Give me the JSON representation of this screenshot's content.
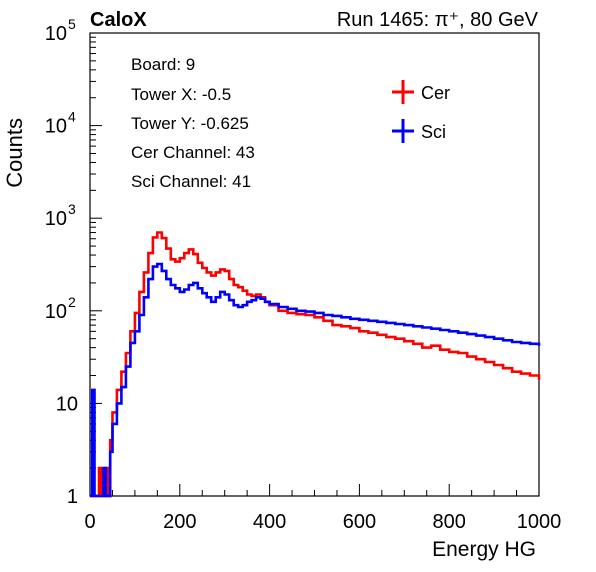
{
  "chart_data": {
    "type": "histogram",
    "title_left": "CaloX",
    "title_right": "Run 1465:   π⁺, 80 GeV",
    "xlabel": "Energy HG",
    "ylabel": "Counts",
    "xlim": [
      0,
      1000
    ],
    "ylim": [
      1,
      100000
    ],
    "ylog": true,
    "xticks": [
      0,
      200,
      400,
      600,
      800,
      1000
    ],
    "xtick_labels": [
      "0",
      "200",
      "400",
      "600",
      "800",
      "1000"
    ],
    "ytick_labels": [
      {
        "value": 1,
        "base": "1",
        "exp": ""
      },
      {
        "value": 10,
        "base": "10",
        "exp": ""
      },
      {
        "value": 100,
        "base": "10",
        "exp": "2"
      },
      {
        "value": 1000,
        "base": "10",
        "exp": "3"
      },
      {
        "value": 10000,
        "base": "10",
        "exp": "4"
      },
      {
        "value": 100000,
        "base": "10",
        "exp": "5"
      }
    ],
    "info_lines": [
      "Board: 9",
      "Tower X: -0.5",
      "Tower Y: -0.625",
      "Cer Channel: 43",
      "Sci Channel: 41"
    ],
    "legend_position": "top-right",
    "series": [
      {
        "name": "Cer",
        "color": "#ff0000",
        "points": [
          [
            0,
            1
          ],
          [
            5,
            1
          ],
          [
            10,
            1
          ],
          [
            15,
            1
          ],
          [
            20,
            2
          ],
          [
            25,
            1
          ],
          [
            30,
            1
          ],
          [
            35,
            2
          ],
          [
            40,
            1
          ],
          [
            45,
            4
          ],
          [
            50,
            8
          ],
          [
            60,
            14
          ],
          [
            70,
            22
          ],
          [
            80,
            35
          ],
          [
            90,
            60
          ],
          [
            100,
            95
          ],
          [
            110,
            160
          ],
          [
            120,
            260
          ],
          [
            130,
            420
          ],
          [
            140,
            620
          ],
          [
            150,
            700
          ],
          [
            160,
            610
          ],
          [
            170,
            470
          ],
          [
            180,
            360
          ],
          [
            190,
            340
          ],
          [
            200,
            370
          ],
          [
            210,
            420
          ],
          [
            220,
            460
          ],
          [
            230,
            410
          ],
          [
            240,
            330
          ],
          [
            250,
            290
          ],
          [
            260,
            260
          ],
          [
            270,
            240
          ],
          [
            280,
            260
          ],
          [
            290,
            280
          ],
          [
            300,
            270
          ],
          [
            310,
            220
          ],
          [
            320,
            190
          ],
          [
            330,
            180
          ],
          [
            340,
            165
          ],
          [
            350,
            150
          ],
          [
            360,
            145
          ],
          [
            370,
            150
          ],
          [
            380,
            140
          ],
          [
            390,
            125
          ],
          [
            400,
            115
          ],
          [
            420,
            100
          ],
          [
            440,
            95
          ],
          [
            460,
            92
          ],
          [
            480,
            90
          ],
          [
            500,
            85
          ],
          [
            520,
            78
          ],
          [
            540,
            70
          ],
          [
            560,
            68
          ],
          [
            580,
            65
          ],
          [
            600,
            60
          ],
          [
            620,
            58
          ],
          [
            640,
            55
          ],
          [
            660,
            52
          ],
          [
            680,
            50
          ],
          [
            700,
            47
          ],
          [
            720,
            44
          ],
          [
            740,
            40
          ],
          [
            760,
            42
          ],
          [
            780,
            38
          ],
          [
            800,
            36
          ],
          [
            820,
            35
          ],
          [
            840,
            32
          ],
          [
            860,
            30
          ],
          [
            880,
            28
          ],
          [
            900,
            26
          ],
          [
            920,
            24
          ],
          [
            940,
            22
          ],
          [
            960,
            21
          ],
          [
            980,
            20
          ],
          [
            1000,
            18
          ]
        ]
      },
      {
        "name": "Sci",
        "color": "#0000ff",
        "points": [
          [
            0,
            1
          ],
          [
            5,
            14
          ],
          [
            10,
            1
          ],
          [
            15,
            1
          ],
          [
            20,
            1
          ],
          [
            25,
            1
          ],
          [
            30,
            2
          ],
          [
            35,
            1
          ],
          [
            40,
            1
          ],
          [
            45,
            3
          ],
          [
            50,
            6
          ],
          [
            60,
            10
          ],
          [
            70,
            15
          ],
          [
            80,
            25
          ],
          [
            90,
            45
          ],
          [
            100,
            60
          ],
          [
            110,
            90
          ],
          [
            120,
            140
          ],
          [
            130,
            220
          ],
          [
            140,
            300
          ],
          [
            150,
            320
          ],
          [
            160,
            270
          ],
          [
            170,
            220
          ],
          [
            180,
            190
          ],
          [
            190,
            175
          ],
          [
            200,
            160
          ],
          [
            210,
            170
          ],
          [
            220,
            190
          ],
          [
            230,
            200
          ],
          [
            240,
            175
          ],
          [
            250,
            155
          ],
          [
            260,
            140
          ],
          [
            270,
            125
          ],
          [
            280,
            140
          ],
          [
            290,
            160
          ],
          [
            300,
            150
          ],
          [
            310,
            130
          ],
          [
            320,
            115
          ],
          [
            330,
            110
          ],
          [
            340,
            115
          ],
          [
            350,
            125
          ],
          [
            360,
            130
          ],
          [
            370,
            140
          ],
          [
            380,
            135
          ],
          [
            390,
            125
          ],
          [
            400,
            118
          ],
          [
            420,
            110
          ],
          [
            440,
            105
          ],
          [
            460,
            100
          ],
          [
            480,
            98
          ],
          [
            500,
            95
          ],
          [
            520,
            90
          ],
          [
            540,
            88
          ],
          [
            560,
            85
          ],
          [
            580,
            82
          ],
          [
            600,
            80
          ],
          [
            620,
            78
          ],
          [
            640,
            76
          ],
          [
            660,
            74
          ],
          [
            680,
            72
          ],
          [
            700,
            70
          ],
          [
            720,
            68
          ],
          [
            740,
            66
          ],
          [
            760,
            64
          ],
          [
            780,
            62
          ],
          [
            800,
            60
          ],
          [
            820,
            58
          ],
          [
            840,
            56
          ],
          [
            860,
            54
          ],
          [
            880,
            52
          ],
          [
            900,
            50
          ],
          [
            920,
            48
          ],
          [
            940,
            46
          ],
          [
            960,
            45
          ],
          [
            980,
            44
          ],
          [
            1000,
            42
          ]
        ]
      }
    ]
  }
}
